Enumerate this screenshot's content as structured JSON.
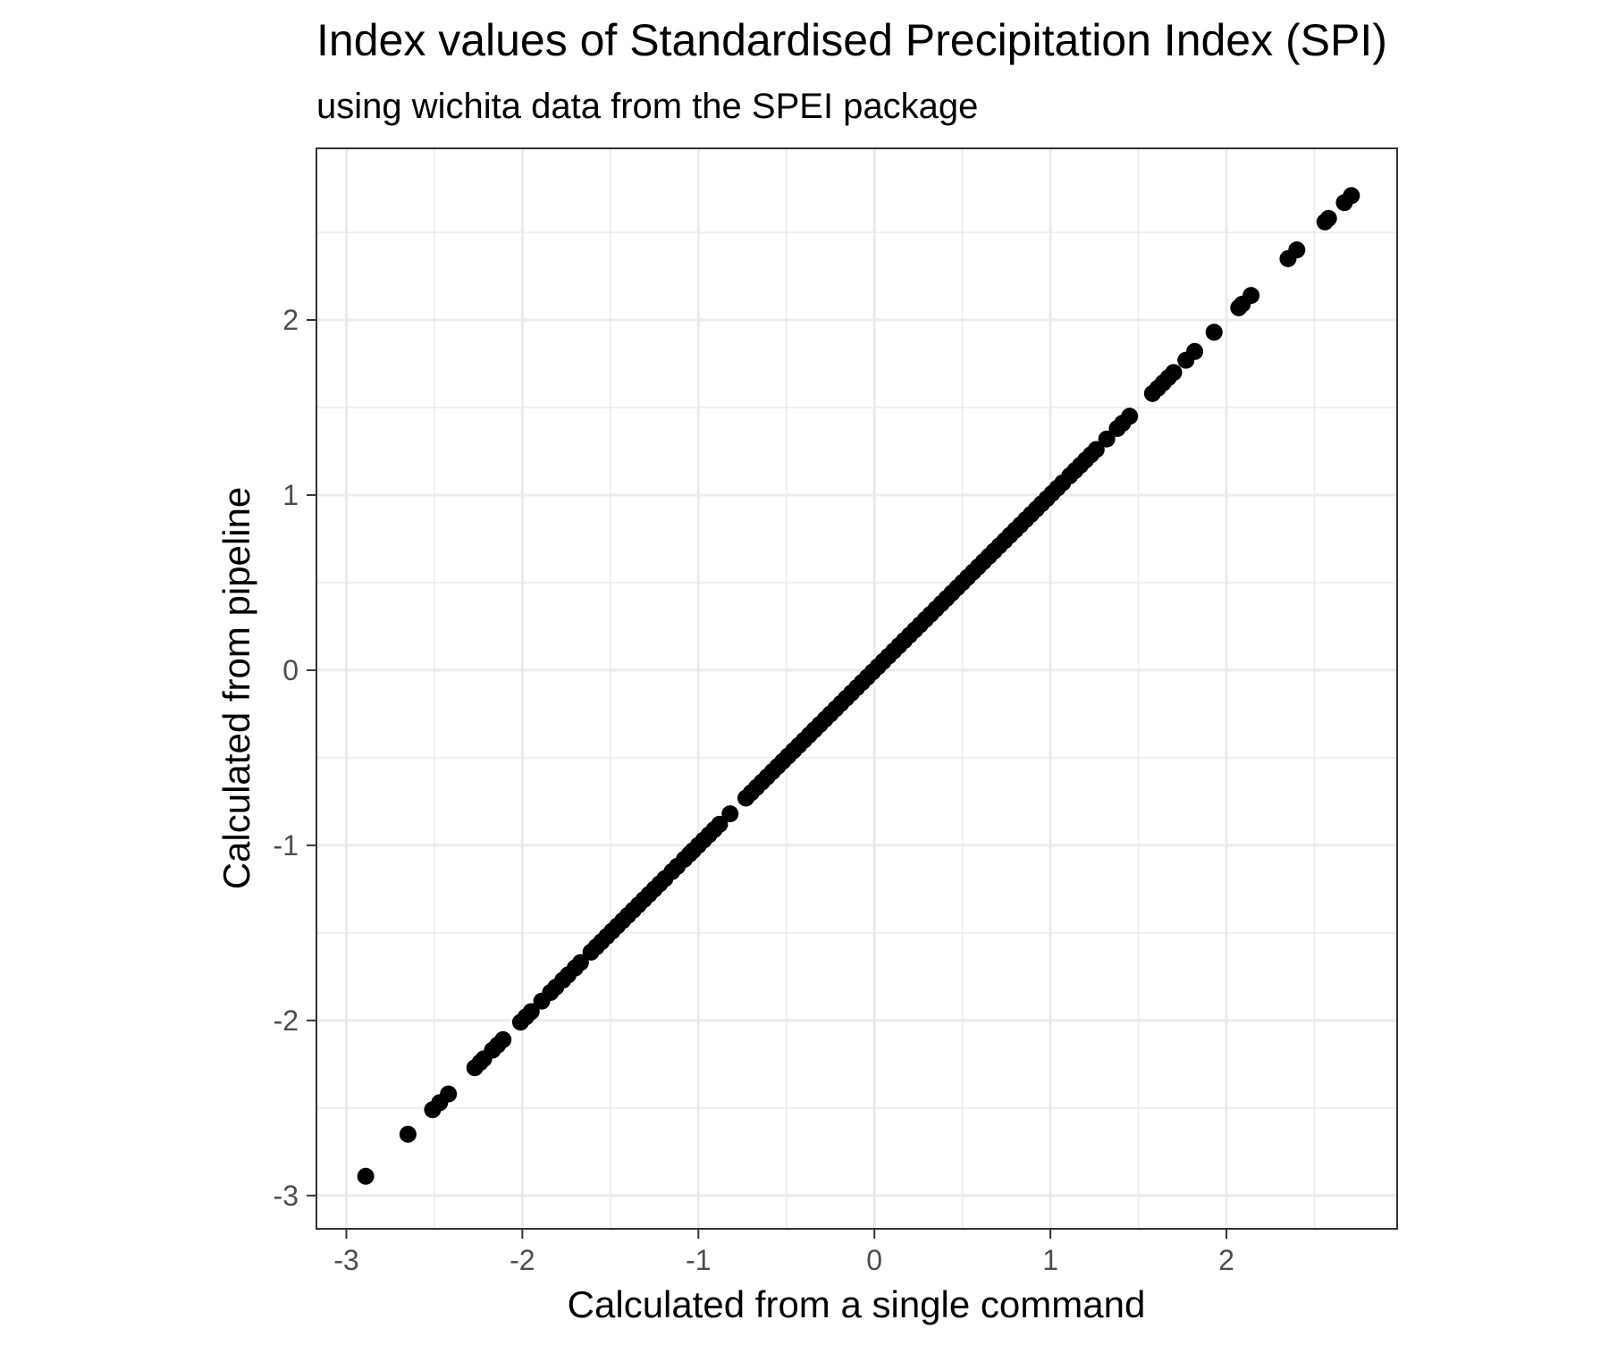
{
  "chart_data": {
    "type": "scatter",
    "title": "Index values of Standardised Precipitation Index (SPI)",
    "subtitle": "using wichita data from the SPEI package",
    "xlabel": "Calculated from a single command",
    "ylabel": "Calculated from pipeline",
    "xlim": [
      -3.17,
      2.97
    ],
    "ylim": [
      -3.19,
      2.98
    ],
    "x_ticks": [
      -3,
      -2,
      -1,
      0,
      1,
      2
    ],
    "x_tick_labels": [
      "-3",
      "-2",
      "-1",
      "0",
      "1",
      "2"
    ],
    "y_ticks": [
      -3,
      -2,
      -1,
      0,
      1,
      2
    ],
    "y_tick_labels": [
      "-3",
      "-2",
      "-1",
      "0",
      "1",
      "2"
    ],
    "grid": true,
    "legend": "none",
    "point_color": "#000000",
    "series": [
      {
        "x": [
          -2.89,
          -2.65,
          -2.51,
          -2.47,
          -2.42,
          -2.27,
          -2.24,
          -2.22,
          -2.17,
          -2.14,
          -2.11,
          -2.01,
          -1.98,
          -1.95,
          -1.89,
          -1.84,
          -1.81,
          -1.77,
          -1.74,
          -1.7,
          -1.67,
          -1.61,
          -1.58,
          -1.55,
          -1.52,
          -1.49,
          -1.46,
          -1.43,
          -1.4,
          -1.37,
          -1.34,
          -1.31,
          -1.28,
          -1.25,
          -1.22,
          -1.19,
          -1.15,
          -1.12,
          -1.08,
          -1.05,
          -1.03,
          -1.0,
          -0.97,
          -0.94,
          -0.91,
          -0.88,
          -0.82,
          -0.73,
          -0.7,
          -0.67,
          -0.64,
          -0.61,
          -0.58,
          -0.55,
          -0.52,
          -0.49,
          -0.46,
          -0.43,
          -0.4,
          -0.37,
          -0.34,
          -0.31,
          -0.28,
          -0.25,
          -0.22,
          -0.19,
          -0.16,
          -0.13,
          -0.1,
          -0.07,
          -0.04,
          -0.01,
          0.02,
          0.05,
          0.08,
          0.11,
          0.14,
          0.17,
          0.2,
          0.23,
          0.26,
          0.29,
          0.32,
          0.35,
          0.38,
          0.41,
          0.44,
          0.47,
          0.5,
          0.53,
          0.56,
          0.59,
          0.62,
          0.65,
          0.68,
          0.71,
          0.74,
          0.77,
          0.8,
          0.83,
          0.86,
          0.89,
          0.92,
          0.95,
          0.98,
          1.01,
          1.04,
          1.07,
          1.11,
          1.14,
          1.17,
          1.2,
          1.23,
          1.26,
          1.32,
          1.38,
          1.41,
          1.45,
          1.58,
          1.61,
          1.64,
          1.67,
          1.7,
          1.77,
          1.82,
          1.93,
          2.07,
          2.09,
          2.14,
          2.35,
          2.4,
          2.56,
          2.58,
          2.67,
          2.71
        ],
        "y": [
          -2.89,
          -2.65,
          -2.51,
          -2.47,
          -2.42,
          -2.27,
          -2.24,
          -2.22,
          -2.17,
          -2.14,
          -2.11,
          -2.01,
          -1.98,
          -1.95,
          -1.89,
          -1.84,
          -1.81,
          -1.77,
          -1.74,
          -1.7,
          -1.67,
          -1.61,
          -1.58,
          -1.55,
          -1.52,
          -1.49,
          -1.46,
          -1.43,
          -1.4,
          -1.37,
          -1.34,
          -1.31,
          -1.28,
          -1.25,
          -1.22,
          -1.19,
          -1.15,
          -1.12,
          -1.08,
          -1.05,
          -1.03,
          -1.0,
          -0.97,
          -0.94,
          -0.91,
          -0.88,
          -0.82,
          -0.73,
          -0.7,
          -0.67,
          -0.64,
          -0.61,
          -0.58,
          -0.55,
          -0.52,
          -0.49,
          -0.46,
          -0.43,
          -0.4,
          -0.37,
          -0.34,
          -0.31,
          -0.28,
          -0.25,
          -0.22,
          -0.19,
          -0.16,
          -0.13,
          -0.1,
          -0.07,
          -0.04,
          -0.01,
          0.02,
          0.05,
          0.08,
          0.11,
          0.14,
          0.17,
          0.2,
          0.23,
          0.26,
          0.29,
          0.32,
          0.35,
          0.38,
          0.41,
          0.44,
          0.47,
          0.5,
          0.53,
          0.56,
          0.59,
          0.62,
          0.65,
          0.68,
          0.71,
          0.74,
          0.77,
          0.8,
          0.83,
          0.86,
          0.89,
          0.92,
          0.95,
          0.98,
          1.01,
          1.04,
          1.07,
          1.11,
          1.14,
          1.17,
          1.2,
          1.23,
          1.26,
          1.32,
          1.38,
          1.41,
          1.45,
          1.58,
          1.61,
          1.64,
          1.67,
          1.7,
          1.77,
          1.82,
          1.93,
          2.07,
          2.09,
          2.14,
          2.35,
          2.4,
          2.56,
          2.58,
          2.67,
          2.71
        ]
      }
    ]
  }
}
